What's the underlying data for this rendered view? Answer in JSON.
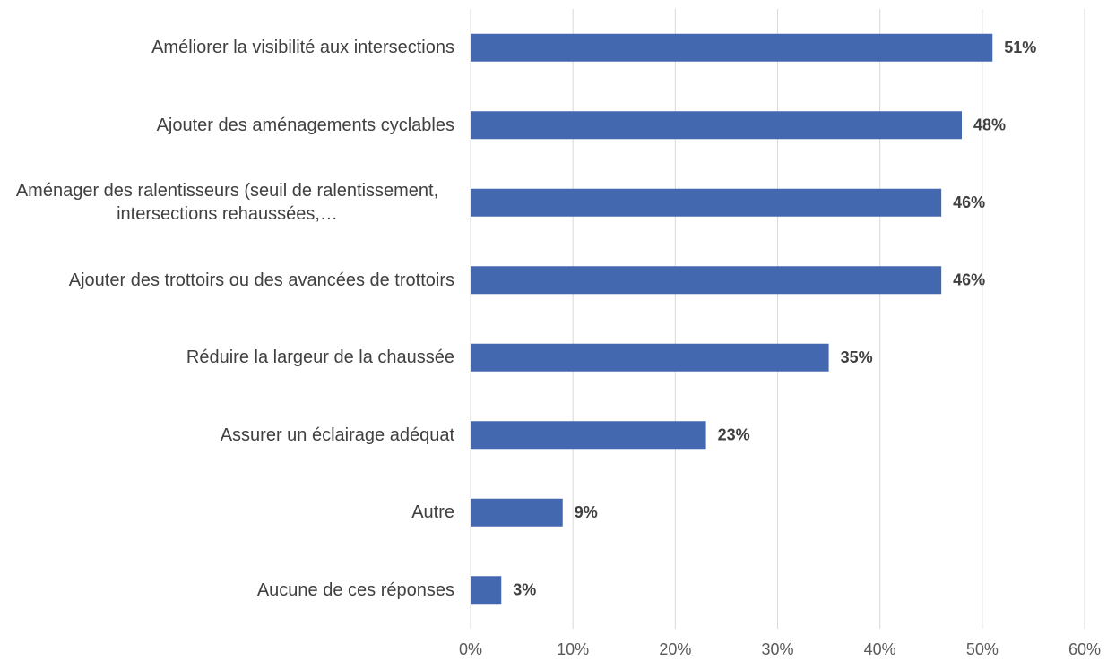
{
  "chart_data": {
    "type": "bar",
    "orientation": "horizontal",
    "categories": [
      "Améliorer la visibilité aux intersections",
      "Ajouter des aménagements cyclables",
      "Aménager des ralentisseurs (seuil de ralentissement, intersections rehaussées,…",
      "Ajouter des trottoirs ou des avancées de trottoirs",
      "Réduire la largeur de la chaussée",
      "Assurer un éclairage adéquat",
      "Autre",
      "Aucune de ces réponses"
    ],
    "values": [
      51,
      48,
      46,
      46,
      35,
      23,
      9,
      3
    ],
    "value_labels": [
      "51%",
      "48%",
      "46%",
      "46%",
      "35%",
      "23%",
      "9%",
      "3%"
    ],
    "color": "#4468b0",
    "xlim": [
      0,
      60
    ],
    "xticks": [
      {
        "value": 0,
        "label": "0%"
      },
      {
        "value": 10,
        "label": "10%"
      },
      {
        "value": 20,
        "label": "20%"
      },
      {
        "value": 30,
        "label": "30%"
      },
      {
        "value": 40,
        "label": "40%"
      },
      {
        "value": 50,
        "label": "50%"
      },
      {
        "value": 60,
        "label": "60%"
      }
    ],
    "grid": true
  }
}
